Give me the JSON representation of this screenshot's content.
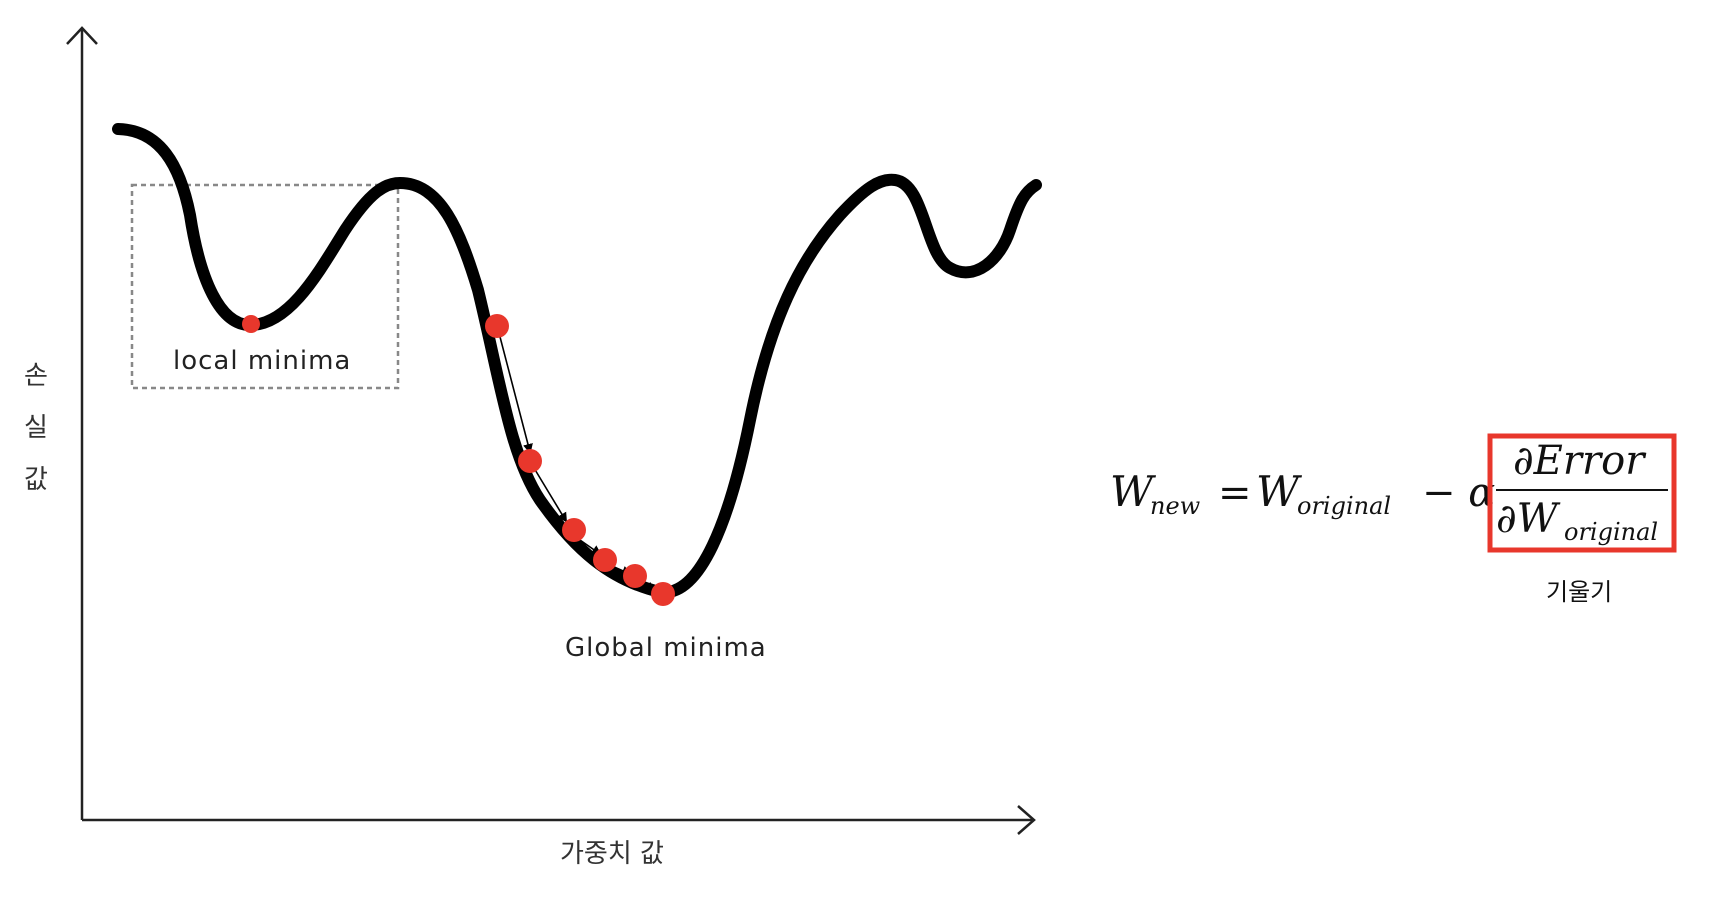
{
  "axes": {
    "y_label": "손실값",
    "y_label_chars": [
      "손",
      "실",
      "값"
    ],
    "x_label": "가중치 값"
  },
  "annotations": {
    "local_minima": "local minima",
    "global_minima": "Global minima"
  },
  "formula": {
    "lhs": "W",
    "lhs_sub": "new",
    "equals": "=",
    "w": "W",
    "w_sub": "original",
    "minus_alpha": "− α",
    "numerator": "∂Error",
    "denominator": "∂W",
    "denominator_sub": "original",
    "gradient_caption": "기울기"
  },
  "colors": {
    "curve": "#000000",
    "point": "#e8372c",
    "highlight_box": "#e8372c",
    "dashed_box": "#888888"
  },
  "icons": {
    "y_axis_arrow": "arrow-up-icon",
    "x_axis_arrow": "arrow-right-icon"
  }
}
